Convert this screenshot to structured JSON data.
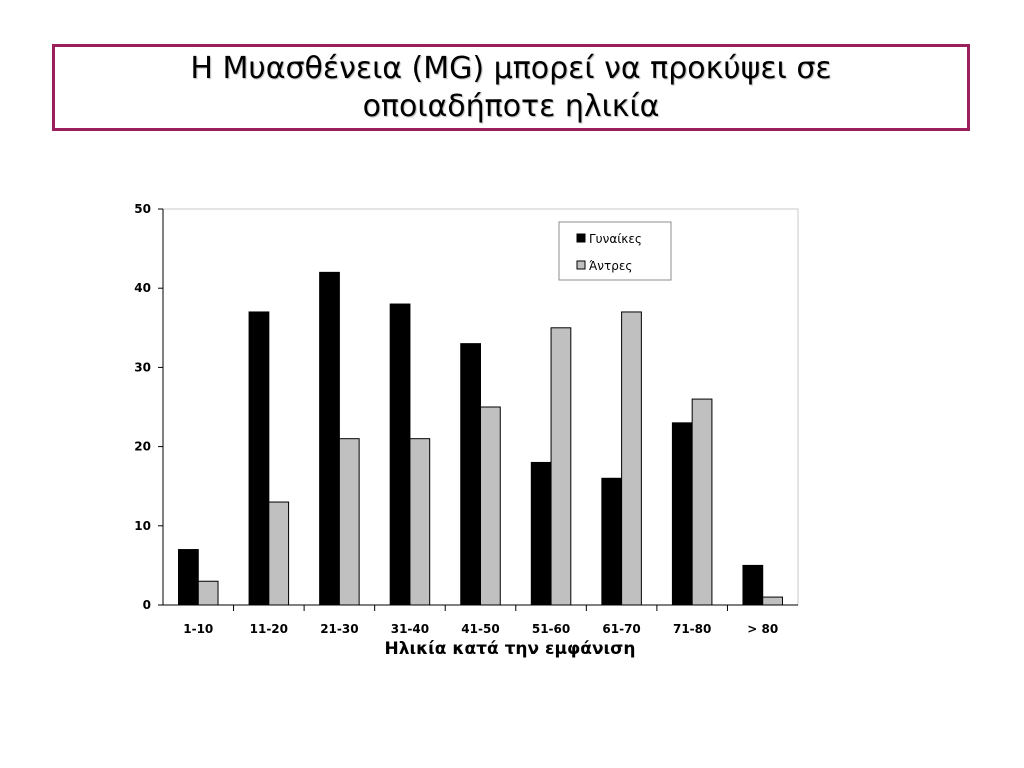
{
  "slide": {
    "title_line1": "Η Μυασθένεια (MG) μπορεί να προκύψει σε",
    "title_line2": "οποιαδήποτε ηλικία",
    "border_color": "#9b1f5a"
  },
  "chart_data": {
    "type": "bar",
    "categories": [
      "1-10",
      "11-20",
      "21-30",
      "31-40",
      "41-50",
      "51-60",
      "61-70",
      "71-80",
      "> 80"
    ],
    "series": [
      {
        "name": "Γυναίκες",
        "values": [
          7,
          37,
          42,
          38,
          33,
          18,
          16,
          23,
          5
        ],
        "color": "#000000"
      },
      {
        "name": "Άντρες",
        "values": [
          3,
          13,
          21,
          21,
          25,
          35,
          37,
          26,
          1
        ],
        "color": "#c0c0c0"
      }
    ],
    "title": "",
    "xlabel": "Ηλικία κατά την εμφάνιση",
    "ylabel": "",
    "ylim": [
      0,
      50
    ],
    "yticks": [
      0,
      10,
      20,
      30,
      40,
      50
    ],
    "grid": false,
    "legend_position": "top-right"
  }
}
